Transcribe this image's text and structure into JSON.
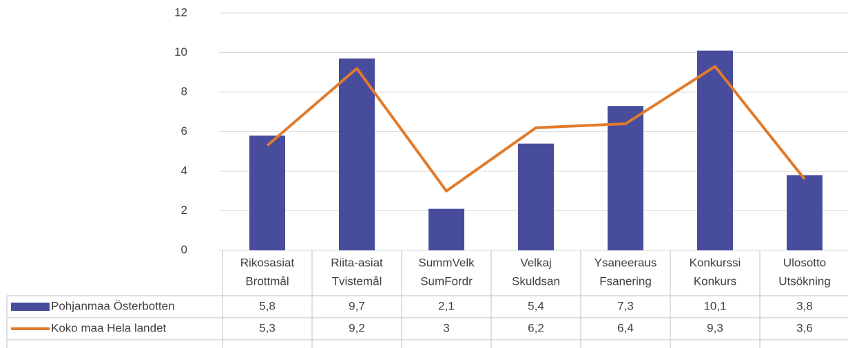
{
  "chart_data": {
    "type": "bar",
    "categories": [
      [
        "Rikosasiat",
        "Brottmål"
      ],
      [
        "Riita-asiat",
        "Tvistemål"
      ],
      [
        "SummVelk",
        "SumFordr"
      ],
      [
        "Velkaj",
        "Skuldsan"
      ],
      [
        "Ysaneeraus",
        "Fsanering"
      ],
      [
        "Konkurssi",
        "Konkurs"
      ],
      [
        "Ulosotto",
        "Utsökning"
      ]
    ],
    "series": [
      {
        "name": "Pohjanmaa Österbotten",
        "type": "bar",
        "color": "#474c9c",
        "values": [
          5.8,
          9.7,
          2.1,
          5.4,
          7.3,
          10.1,
          3.8
        ],
        "value_labels": [
          "5,8",
          "9,7",
          "2,1",
          "5,4",
          "7,3",
          "10,1",
          "3,8"
        ]
      },
      {
        "name": "Koko maa Hela landet",
        "type": "line",
        "color": "#e07b2c",
        "values": [
          5.3,
          9.2,
          3,
          6.2,
          6.4,
          9.3,
          3.6
        ],
        "value_labels": [
          "5,3",
          "9,2",
          "3",
          "6,2",
          "6,4",
          "9,3",
          "3,6"
        ]
      }
    ],
    "ylim": [
      0,
      12
    ],
    "yticks": [
      0,
      2,
      4,
      6,
      8,
      10,
      12
    ],
    "grid": true
  }
}
